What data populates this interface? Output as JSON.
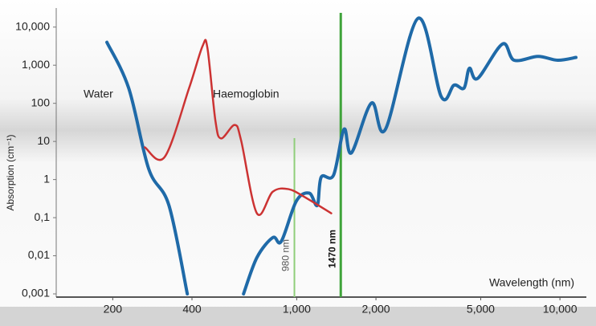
{
  "chart_data": {
    "type": "line",
    "x_label": "Wavelength (nm)",
    "y_label": "Absorption (cm⁻¹)",
    "xscale": "log",
    "yscale": "log",
    "xlim": [
      122,
      12600
    ],
    "ylim": [
      0.001,
      31623
    ],
    "xticks": [
      200,
      400,
      {
        "value": 1000,
        "label": "1,000"
      },
      {
        "value": 2000,
        "label": "2,000"
      },
      {
        "value": 5000,
        "label": "5,000"
      },
      {
        "value": 10000,
        "label": "10,000"
      }
    ],
    "yticks": [
      {
        "value": 0.001,
        "label": "0,001"
      },
      {
        "value": 0.01,
        "label": "0,01"
      },
      {
        "value": 0.1,
        "label": "0,1"
      },
      1,
      10,
      100,
      {
        "value": 1000,
        "label": "1,000"
      },
      {
        "value": 10000,
        "label": "10,000"
      }
    ],
    "series": [
      {
        "name": "Water",
        "color": "#1f6aa8",
        "x": [
          190,
          230,
          274,
          327,
          384,
          null,
          628,
          706,
          811,
          874,
          996,
          1116,
          1197,
          1239,
          1380,
          1513,
          1614,
          1924,
          2175,
          2890,
          3540,
          3960,
          4320,
          4530,
          4870,
          6050,
          6700,
          8260,
          9800,
          11500
        ],
        "values": [
          4000,
          250,
          1.9,
          0.21,
          0.001,
          null,
          0.001,
          0.009,
          0.03,
          0.024,
          0.27,
          0.44,
          0.21,
          1.16,
          1.3,
          21,
          5,
          102,
          21,
          17000,
          150,
          300,
          250,
          830,
          450,
          3600,
          1350,
          1700,
          1350,
          1600
        ]
      },
      {
        "name": "Haemoglobin",
        "color": "#cc3333",
        "x": [
          265,
          315,
          390,
          439,
          458,
          491,
          516,
          581,
          615,
          706,
          811,
          931,
          1077,
          1353
        ],
        "values": [
          7,
          3.9,
          250,
          3200,
          2800,
          35,
          12,
          27,
          10.5,
          0.13,
          0.48,
          0.56,
          0.34,
          0.13
        ]
      }
    ],
    "reference_lines": [
      {
        "value": 980,
        "label": "980 nm",
        "color": "#8fce7a"
      },
      {
        "value": 1470,
        "label": "1470 nm",
        "color": "#3fa33a"
      }
    ]
  }
}
